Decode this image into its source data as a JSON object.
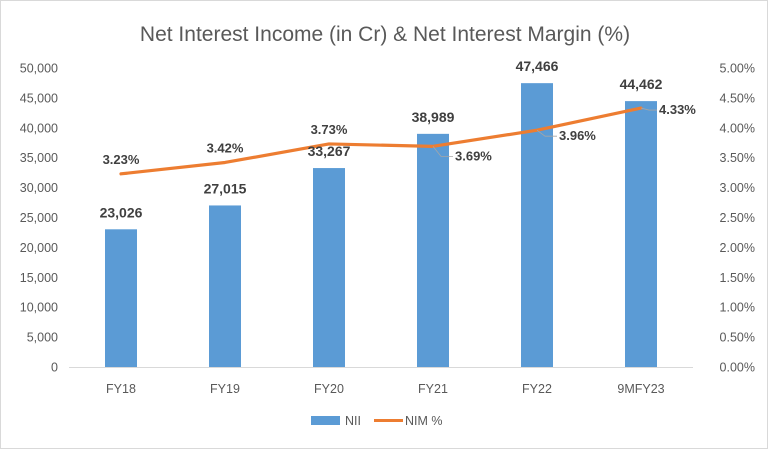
{
  "chart": {
    "title": "Net Interest Income (in Cr) & Net Interest Margin (%)",
    "left_axis_ticks": [
      "50,000",
      "45,000",
      "40,000",
      "35,000",
      "30,000",
      "25,000",
      "20,000",
      "15,000",
      "10,000",
      "5,000",
      "0"
    ],
    "right_axis_ticks": [
      "5.00%",
      "4.50%",
      "4.00%",
      "3.50%",
      "3.00%",
      "2.50%",
      "2.00%",
      "1.50%",
      "1.00%",
      "0.50%",
      "0.00%"
    ],
    "categories": [
      "FY18",
      "FY19",
      "FY20",
      "FY21",
      "FY22",
      "9MFY23"
    ],
    "bar_labels": [
      "23,026",
      "27,015",
      "33,267",
      "38,989",
      "47,466",
      "44,462"
    ],
    "line_labels": [
      "3.23%",
      "3.42%",
      "3.73%",
      "3.69%",
      "3.96%",
      "4.33%"
    ],
    "legend": {
      "bar": "NII",
      "line": "NIM %"
    },
    "colors": {
      "bar": "#5b9bd5",
      "line": "#ed7d31",
      "text": "#595959",
      "grid_axis": "#d9d9d9"
    }
  },
  "chart_data": {
    "type": "bar",
    "title": "Net Interest Income (in Cr) & Net Interest Margin (%)",
    "categories": [
      "FY18",
      "FY19",
      "FY20",
      "FY21",
      "FY22",
      "9MFY23"
    ],
    "series": [
      {
        "name": "NII",
        "type": "bar",
        "axis": "left",
        "values": [
          23026,
          27015,
          33267,
          38989,
          47466,
          44462
        ]
      },
      {
        "name": "NIM %",
        "type": "line",
        "axis": "right",
        "values": [
          3.23,
          3.42,
          3.73,
          3.69,
          3.96,
          4.33
        ]
      }
    ],
    "xlabel": "",
    "ylabel": "",
    "ylim": [
      0,
      50000
    ],
    "y2lim": [
      0,
      5.0
    ],
    "y2_format": "percent",
    "grid": false,
    "legend_position": "bottom"
  }
}
